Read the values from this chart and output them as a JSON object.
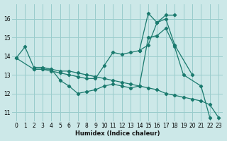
{
  "xlabel": "Humidex (Indice chaleur)",
  "bg_color": "#cce8e8",
  "line_color": "#1a7a6e",
  "grid_color": "#99cccc",
  "xlim": [
    -0.5,
    23.5
  ],
  "ylim": [
    10.5,
    16.8
  ],
  "xticks": [
    0,
    1,
    2,
    3,
    4,
    5,
    6,
    7,
    8,
    9,
    10,
    11,
    12,
    13,
    14,
    15,
    16,
    17,
    18,
    19,
    20,
    21,
    22,
    23
  ],
  "yticks": [
    11,
    12,
    13,
    14,
    15,
    16
  ],
  "line1_x": [
    0,
    1,
    2,
    3,
    4,
    5,
    6,
    7,
    8,
    9,
    10,
    11,
    12,
    13,
    14,
    15,
    16,
    17,
    18,
    19,
    21,
    22
  ],
  "line1_y": [
    13.9,
    14.5,
    13.4,
    13.4,
    13.3,
    12.7,
    12.4,
    12.0,
    12.1,
    12.2,
    12.4,
    12.5,
    12.4,
    12.3,
    12.4,
    15.0,
    15.1,
    15.5,
    14.5,
    13.0,
    12.4,
    10.7
  ],
  "line2_x": [
    2,
    3,
    4,
    5,
    6,
    7,
    8,
    9,
    10,
    11,
    12,
    13,
    14,
    15,
    16,
    17,
    18,
    20
  ],
  "line2_y": [
    13.3,
    13.3,
    13.2,
    13.1,
    13.0,
    12.9,
    12.8,
    12.8,
    13.5,
    14.2,
    14.1,
    14.2,
    14.3,
    14.6,
    15.8,
    16.0,
    14.6,
    13.0
  ],
  "line3_x": [
    0,
    2,
    3,
    4,
    5,
    6,
    7,
    8,
    9,
    10,
    11,
    12,
    13,
    14,
    15,
    16,
    17,
    18,
    19,
    20,
    21,
    22,
    23
  ],
  "line3_y": [
    13.9,
    13.3,
    13.3,
    13.3,
    13.2,
    13.2,
    13.1,
    13.0,
    12.9,
    12.8,
    12.7,
    12.6,
    12.5,
    12.4,
    12.3,
    12.2,
    12.0,
    11.9,
    11.8,
    11.7,
    11.6,
    11.4,
    10.7
  ],
  "line4_x": [
    14,
    15,
    16,
    17,
    18
  ],
  "line4_y": [
    14.3,
    16.3,
    15.8,
    16.2,
    16.2
  ]
}
